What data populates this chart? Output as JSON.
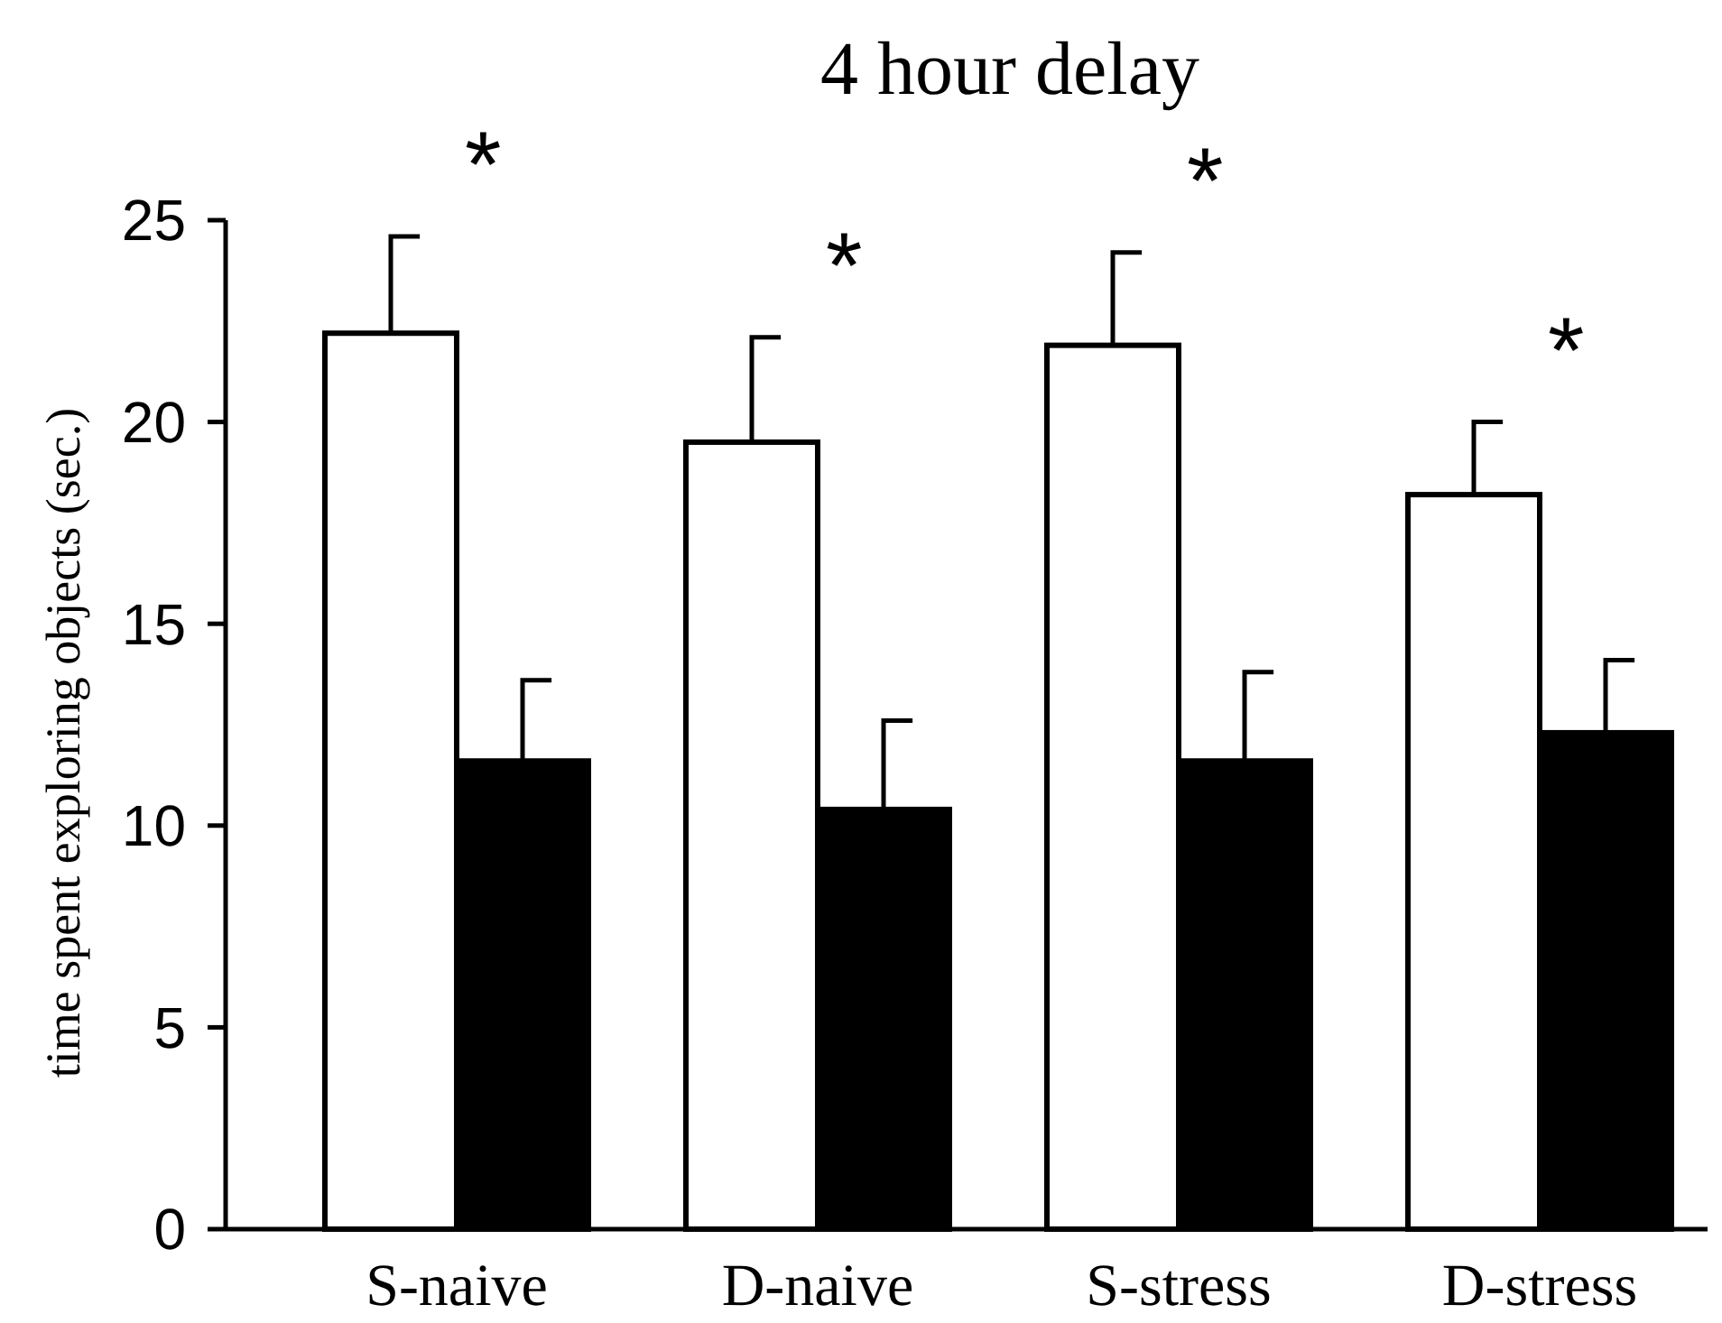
{
  "chart_data": {
    "type": "bar",
    "title": "4 hour delay",
    "ylabel": "time spent exploring objects (sec.)",
    "categories": [
      "S-naive",
      "D-naive",
      "S-stress",
      "D-stress"
    ],
    "series": [
      {
        "color": "#ffffff",
        "values": [
          22.2,
          19.5,
          21.9,
          18.2
        ],
        "errors": [
          [
            22.2,
            24.6
          ],
          [
            19.5,
            22.1
          ],
          [
            21.9,
            24.2
          ],
          [
            18.2,
            20.0
          ]
        ]
      },
      {
        "color": "#000000",
        "values": [
          11.6,
          10.4,
          11.6,
          12.3
        ],
        "errors": [
          [
            11.6,
            13.6
          ],
          [
            10.4,
            12.6
          ],
          [
            11.6,
            13.8
          ],
          [
            12.3,
            14.1
          ]
        ]
      }
    ],
    "ylim": [
      0,
      25
    ],
    "yticks": [
      0,
      5,
      10,
      15,
      20,
      25
    ],
    "grid": false,
    "annotations": [
      "*",
      "*",
      "*",
      "*"
    ]
  }
}
